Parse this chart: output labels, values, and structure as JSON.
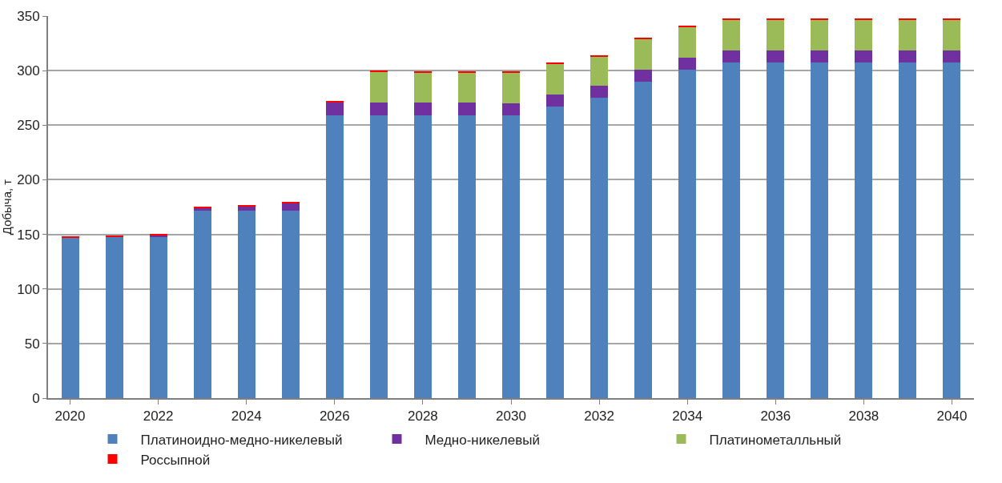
{
  "chart_data": {
    "type": "bar",
    "stacked": true,
    "ylabel": "Добыча, т",
    "x": [
      2020,
      2021,
      2022,
      2023,
      2024,
      2025,
      2026,
      2027,
      2028,
      2029,
      2030,
      2031,
      2032,
      2033,
      2034,
      2035,
      2036,
      2037,
      2038,
      2039,
      2040
    ],
    "xlim": [
      2019.5,
      2040.5
    ],
    "xticks": [
      2020,
      2022,
      2024,
      2026,
      2028,
      2030,
      2032,
      2034,
      2036,
      2038,
      2040
    ],
    "ylim": [
      0,
      350
    ],
    "yticks": [
      0,
      50,
      100,
      150,
      200,
      250,
      300,
      350
    ],
    "grid": "y",
    "legend": "bottom",
    "series": [
      {
        "name": "Платиноидно-медно-никелевый",
        "color": "#4f81bd",
        "values": [
          147,
          148,
          148,
          172,
          172,
          172,
          259,
          259,
          259,
          259,
          259,
          267,
          275,
          290,
          301,
          307.5,
          307.5,
          307.5,
          307.5,
          307.5,
          307.5
        ]
      },
      {
        "name": "Медно-никелевый",
        "color": "#7030a0",
        "values": [
          0,
          0,
          1,
          2,
          4,
          7,
          12,
          12,
          11.5,
          11.5,
          11,
          11,
          11,
          11,
          11,
          11,
          11,
          11,
          11,
          11,
          11
        ]
      },
      {
        "name": "Платинометалльный",
        "color": "#9bbb59",
        "values": [
          0,
          0,
          0,
          0,
          0,
          0,
          0,
          28,
          28,
          28,
          28,
          28,
          27,
          28,
          28,
          28,
          28,
          28,
          28,
          28,
          28
        ]
      },
      {
        "name": "Россыпной",
        "color": "#ff0000",
        "values": [
          1,
          1,
          1,
          1,
          1,
          1,
          1,
          1,
          1,
          1,
          1,
          1,
          1,
          1,
          1,
          1,
          1,
          1,
          1,
          1,
          1
        ]
      }
    ]
  }
}
